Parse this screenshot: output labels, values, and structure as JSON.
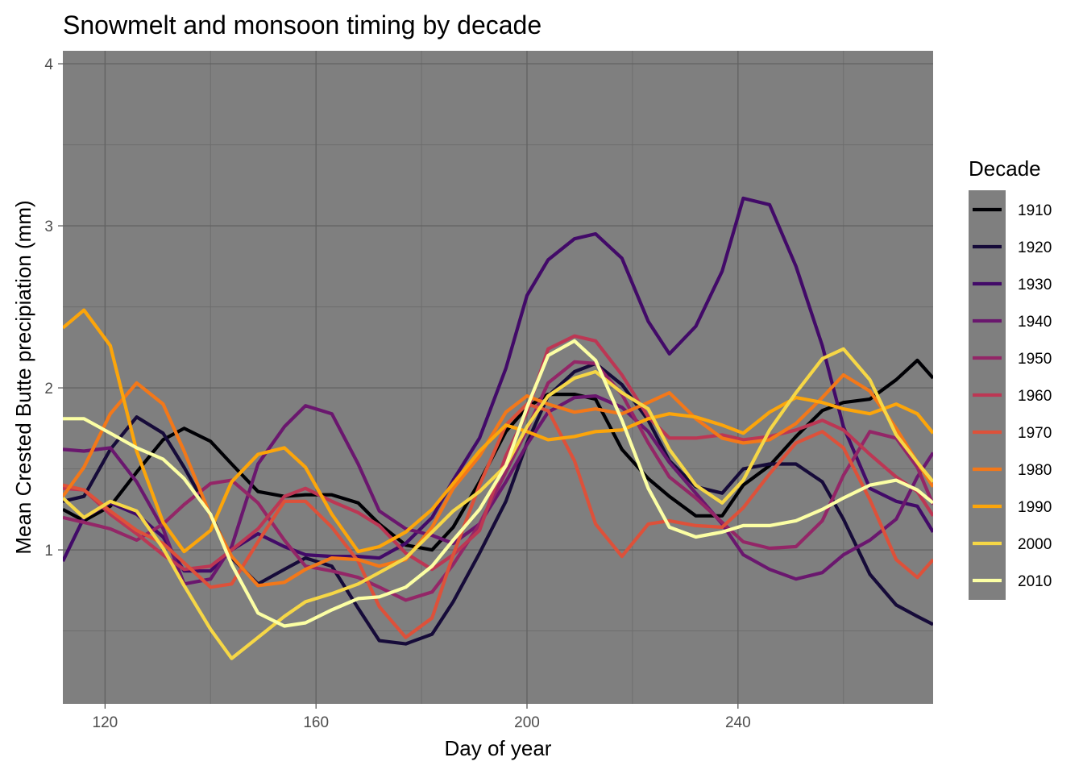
{
  "chart_data": {
    "type": "line",
    "title": "Snowmelt and monsoon timing by decade",
    "xlabel": "Day of year",
    "ylabel": "Mean Crested Butte precipiation (mm)",
    "xlim": [
      112,
      277
    ],
    "ylim": [
      0.05,
      4.08
    ],
    "xticks": [
      120,
      160,
      200,
      240
    ],
    "yticks": [
      1,
      2,
      3,
      4
    ],
    "grid": true,
    "panel_background": "#7f7f7f",
    "legend": {
      "title": "Decade",
      "position": "right"
    },
    "x": [
      112,
      116,
      121,
      126,
      131,
      135,
      140,
      144,
      149,
      154,
      158,
      163,
      168,
      172,
      177,
      182,
      186,
      191,
      196,
      200,
      204,
      209,
      213,
      218,
      223,
      227,
      232,
      237,
      241,
      246,
      251,
      256,
      260,
      265,
      270,
      274,
      277
    ],
    "series": [
      {
        "name": "1910",
        "color": "#000004",
        "values": [
          1.25,
          1.18,
          1.27,
          1.48,
          1.68,
          1.75,
          1.67,
          1.53,
          1.36,
          1.33,
          1.34,
          1.34,
          1.29,
          1.16,
          1.03,
          1.0,
          1.14,
          1.42,
          1.73,
          1.88,
          1.96,
          1.96,
          1.93,
          1.62,
          1.44,
          1.33,
          1.21,
          1.21,
          1.4,
          1.52,
          1.7,
          1.86,
          1.91,
          1.93,
          2.05,
          2.17,
          2.06
        ]
      },
      {
        "name": "1920",
        "color": "#160b39",
        "values": [
          1.3,
          1.33,
          1.62,
          1.82,
          1.72,
          1.51,
          1.22,
          0.95,
          0.79,
          0.88,
          0.95,
          0.9,
          0.64,
          0.44,
          0.42,
          0.48,
          0.68,
          0.98,
          1.3,
          1.66,
          1.95,
          2.1,
          2.15,
          2.02,
          1.8,
          1.55,
          1.39,
          1.35,
          1.5,
          1.53,
          1.53,
          1.42,
          1.19,
          0.85,
          0.66,
          0.59,
          0.54
        ]
      },
      {
        "name": "1930",
        "color": "#420a68",
        "values": [
          0.93,
          1.2,
          1.29,
          1.22,
          1.08,
          0.87,
          0.87,
          1.0,
          1.1,
          1.02,
          0.97,
          0.96,
          0.96,
          0.95,
          1.04,
          1.2,
          1.43,
          1.69,
          2.12,
          2.57,
          2.79,
          2.92,
          2.95,
          2.8,
          2.41,
          2.21,
          2.38,
          2.72,
          3.17,
          3.13,
          2.75,
          2.26,
          1.76,
          1.38,
          1.3,
          1.27,
          1.11
        ]
      },
      {
        "name": "1940",
        "color": "#6a176e",
        "values": [
          1.62,
          1.61,
          1.63,
          1.42,
          1.13,
          0.79,
          0.82,
          1.02,
          1.53,
          1.76,
          1.89,
          1.84,
          1.53,
          1.24,
          1.13,
          1.09,
          1.04,
          1.16,
          1.42,
          1.65,
          1.85,
          1.94,
          1.95,
          1.88,
          1.73,
          1.54,
          1.35,
          1.16,
          0.97,
          0.88,
          0.82,
          0.86,
          0.97,
          1.06,
          1.19,
          1.45,
          1.6
        ]
      },
      {
        "name": "1950",
        "color": "#932667",
        "values": [
          1.2,
          1.17,
          1.13,
          1.06,
          1.16,
          1.28,
          1.41,
          1.43,
          1.29,
          1.06,
          0.9,
          0.87,
          0.83,
          0.77,
          0.69,
          0.74,
          0.91,
          1.16,
          1.48,
          1.74,
          2.03,
          2.16,
          2.15,
          1.96,
          1.66,
          1.45,
          1.32,
          1.17,
          1.05,
          1.01,
          1.02,
          1.18,
          1.46,
          1.73,
          1.69,
          1.51,
          1.28
        ]
      },
      {
        "name": "1960",
        "color": "#bc3754",
        "values": [
          1.38,
          1.37,
          1.22,
          1.1,
          0.97,
          0.88,
          0.9,
          1.0,
          1.13,
          1.33,
          1.38,
          1.3,
          1.23,
          1.15,
          0.98,
          0.88,
          0.97,
          1.12,
          1.58,
          1.85,
          2.24,
          2.32,
          2.29,
          2.08,
          1.82,
          1.69,
          1.69,
          1.71,
          1.68,
          1.7,
          1.74,
          1.8,
          1.74,
          1.59,
          1.45,
          1.36,
          1.21
        ]
      },
      {
        "name": "1970",
        "color": "#dd513a",
        "values": [
          1.4,
          1.37,
          1.24,
          1.12,
          1.04,
          0.92,
          0.77,
          0.79,
          1.05,
          1.3,
          1.3,
          1.14,
          0.93,
          0.65,
          0.46,
          0.58,
          0.97,
          1.4,
          1.77,
          1.9,
          1.86,
          1.55,
          1.16,
          0.96,
          1.16,
          1.18,
          1.15,
          1.14,
          1.26,
          1.47,
          1.66,
          1.73,
          1.63,
          1.31,
          0.94,
          0.83,
          0.94
        ]
      },
      {
        "name": "1980",
        "color": "#f37819",
        "values": [
          1.33,
          1.51,
          1.84,
          2.03,
          1.9,
          1.61,
          1.21,
          0.96,
          0.78,
          0.8,
          0.88,
          0.95,
          0.94,
          0.9,
          0.94,
          1.14,
          1.38,
          1.58,
          1.85,
          1.95,
          1.9,
          1.85,
          1.87,
          1.84,
          1.91,
          1.97,
          1.81,
          1.69,
          1.66,
          1.68,
          1.78,
          1.94,
          2.08,
          1.98,
          1.75,
          1.54,
          1.39
        ]
      },
      {
        "name": "1990",
        "color": "#fca50a",
        "values": [
          2.37,
          2.48,
          2.26,
          1.61,
          1.17,
          0.99,
          1.12,
          1.42,
          1.59,
          1.63,
          1.51,
          1.22,
          0.99,
          1.02,
          1.11,
          1.25,
          1.41,
          1.61,
          1.77,
          1.73,
          1.68,
          1.7,
          1.73,
          1.74,
          1.81,
          1.84,
          1.82,
          1.77,
          1.72,
          1.85,
          1.94,
          1.91,
          1.87,
          1.84,
          1.9,
          1.84,
          1.72
        ]
      },
      {
        "name": "2000",
        "color": "#f6d746",
        "values": [
          1.32,
          1.2,
          1.3,
          1.24,
          1.01,
          0.78,
          0.51,
          0.33,
          0.46,
          0.59,
          0.68,
          0.73,
          0.79,
          0.86,
          0.95,
          1.11,
          1.24,
          1.36,
          1.52,
          1.76,
          1.95,
          2.06,
          2.1,
          1.97,
          1.87,
          1.62,
          1.4,
          1.29,
          1.43,
          1.74,
          1.97,
          2.18,
          2.24,
          2.05,
          1.71,
          1.54,
          1.42
        ]
      },
      {
        "name": "2010",
        "color": "#fcffa4",
        "values": [
          1.81,
          1.81,
          1.72,
          1.63,
          1.56,
          1.44,
          1.22,
          0.91,
          0.61,
          0.53,
          0.55,
          0.63,
          0.7,
          0.71,
          0.77,
          0.9,
          1.06,
          1.25,
          1.52,
          1.88,
          2.2,
          2.29,
          2.17,
          1.8,
          1.38,
          1.14,
          1.08,
          1.11,
          1.15,
          1.15,
          1.18,
          1.25,
          1.32,
          1.4,
          1.43,
          1.37,
          1.29
        ]
      }
    ]
  }
}
